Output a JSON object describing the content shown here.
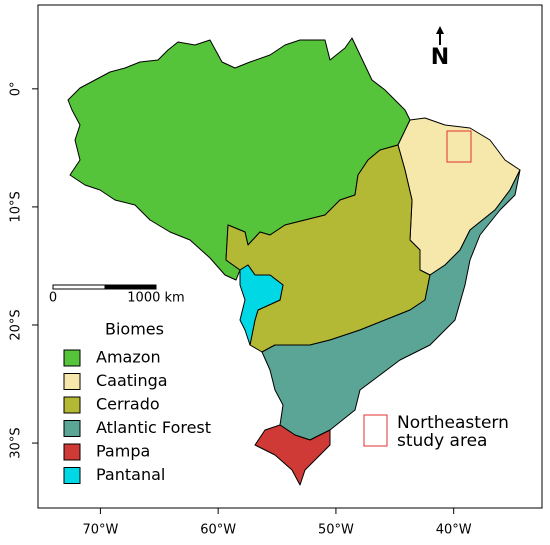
{
  "map": {
    "xlim": [
      -75.3,
      -32.5
    ],
    "ylim": [
      -35.5,
      7.1
    ],
    "xticks": [
      {
        "value": -70,
        "label": "70°W"
      },
      {
        "value": -60,
        "label": "60°W"
      },
      {
        "value": -50,
        "label": "50°W"
      },
      {
        "value": -40,
        "label": "40°W"
      }
    ],
    "yticks": [
      {
        "value": 0,
        "label": "0°"
      },
      {
        "value": -10,
        "label": "10°S"
      },
      {
        "value": -20,
        "label": "20°S"
      },
      {
        "value": -30,
        "label": "30°S"
      }
    ],
    "north_arrow": "N",
    "scale_bar": {
      "labels": [
        "0",
        "1000 km"
      ]
    },
    "legend": {
      "title": "Biomes",
      "items": [
        {
          "name": "Amazon",
          "color": "#55c43a"
        },
        {
          "name": "Caatinga",
          "color": "#f6e8aa"
        },
        {
          "name": "Cerrado",
          "color": "#b3b935"
        },
        {
          "name": "Atlantic Forest",
          "color": "#5aa595"
        },
        {
          "name": "Pampa",
          "color": "#cf3a36"
        },
        {
          "name": "Pantanal",
          "color": "#00d8e6"
        }
      ]
    },
    "annotation": {
      "lines": [
        "Northeastern",
        "study area"
      ],
      "color": "#e03030"
    }
  }
}
